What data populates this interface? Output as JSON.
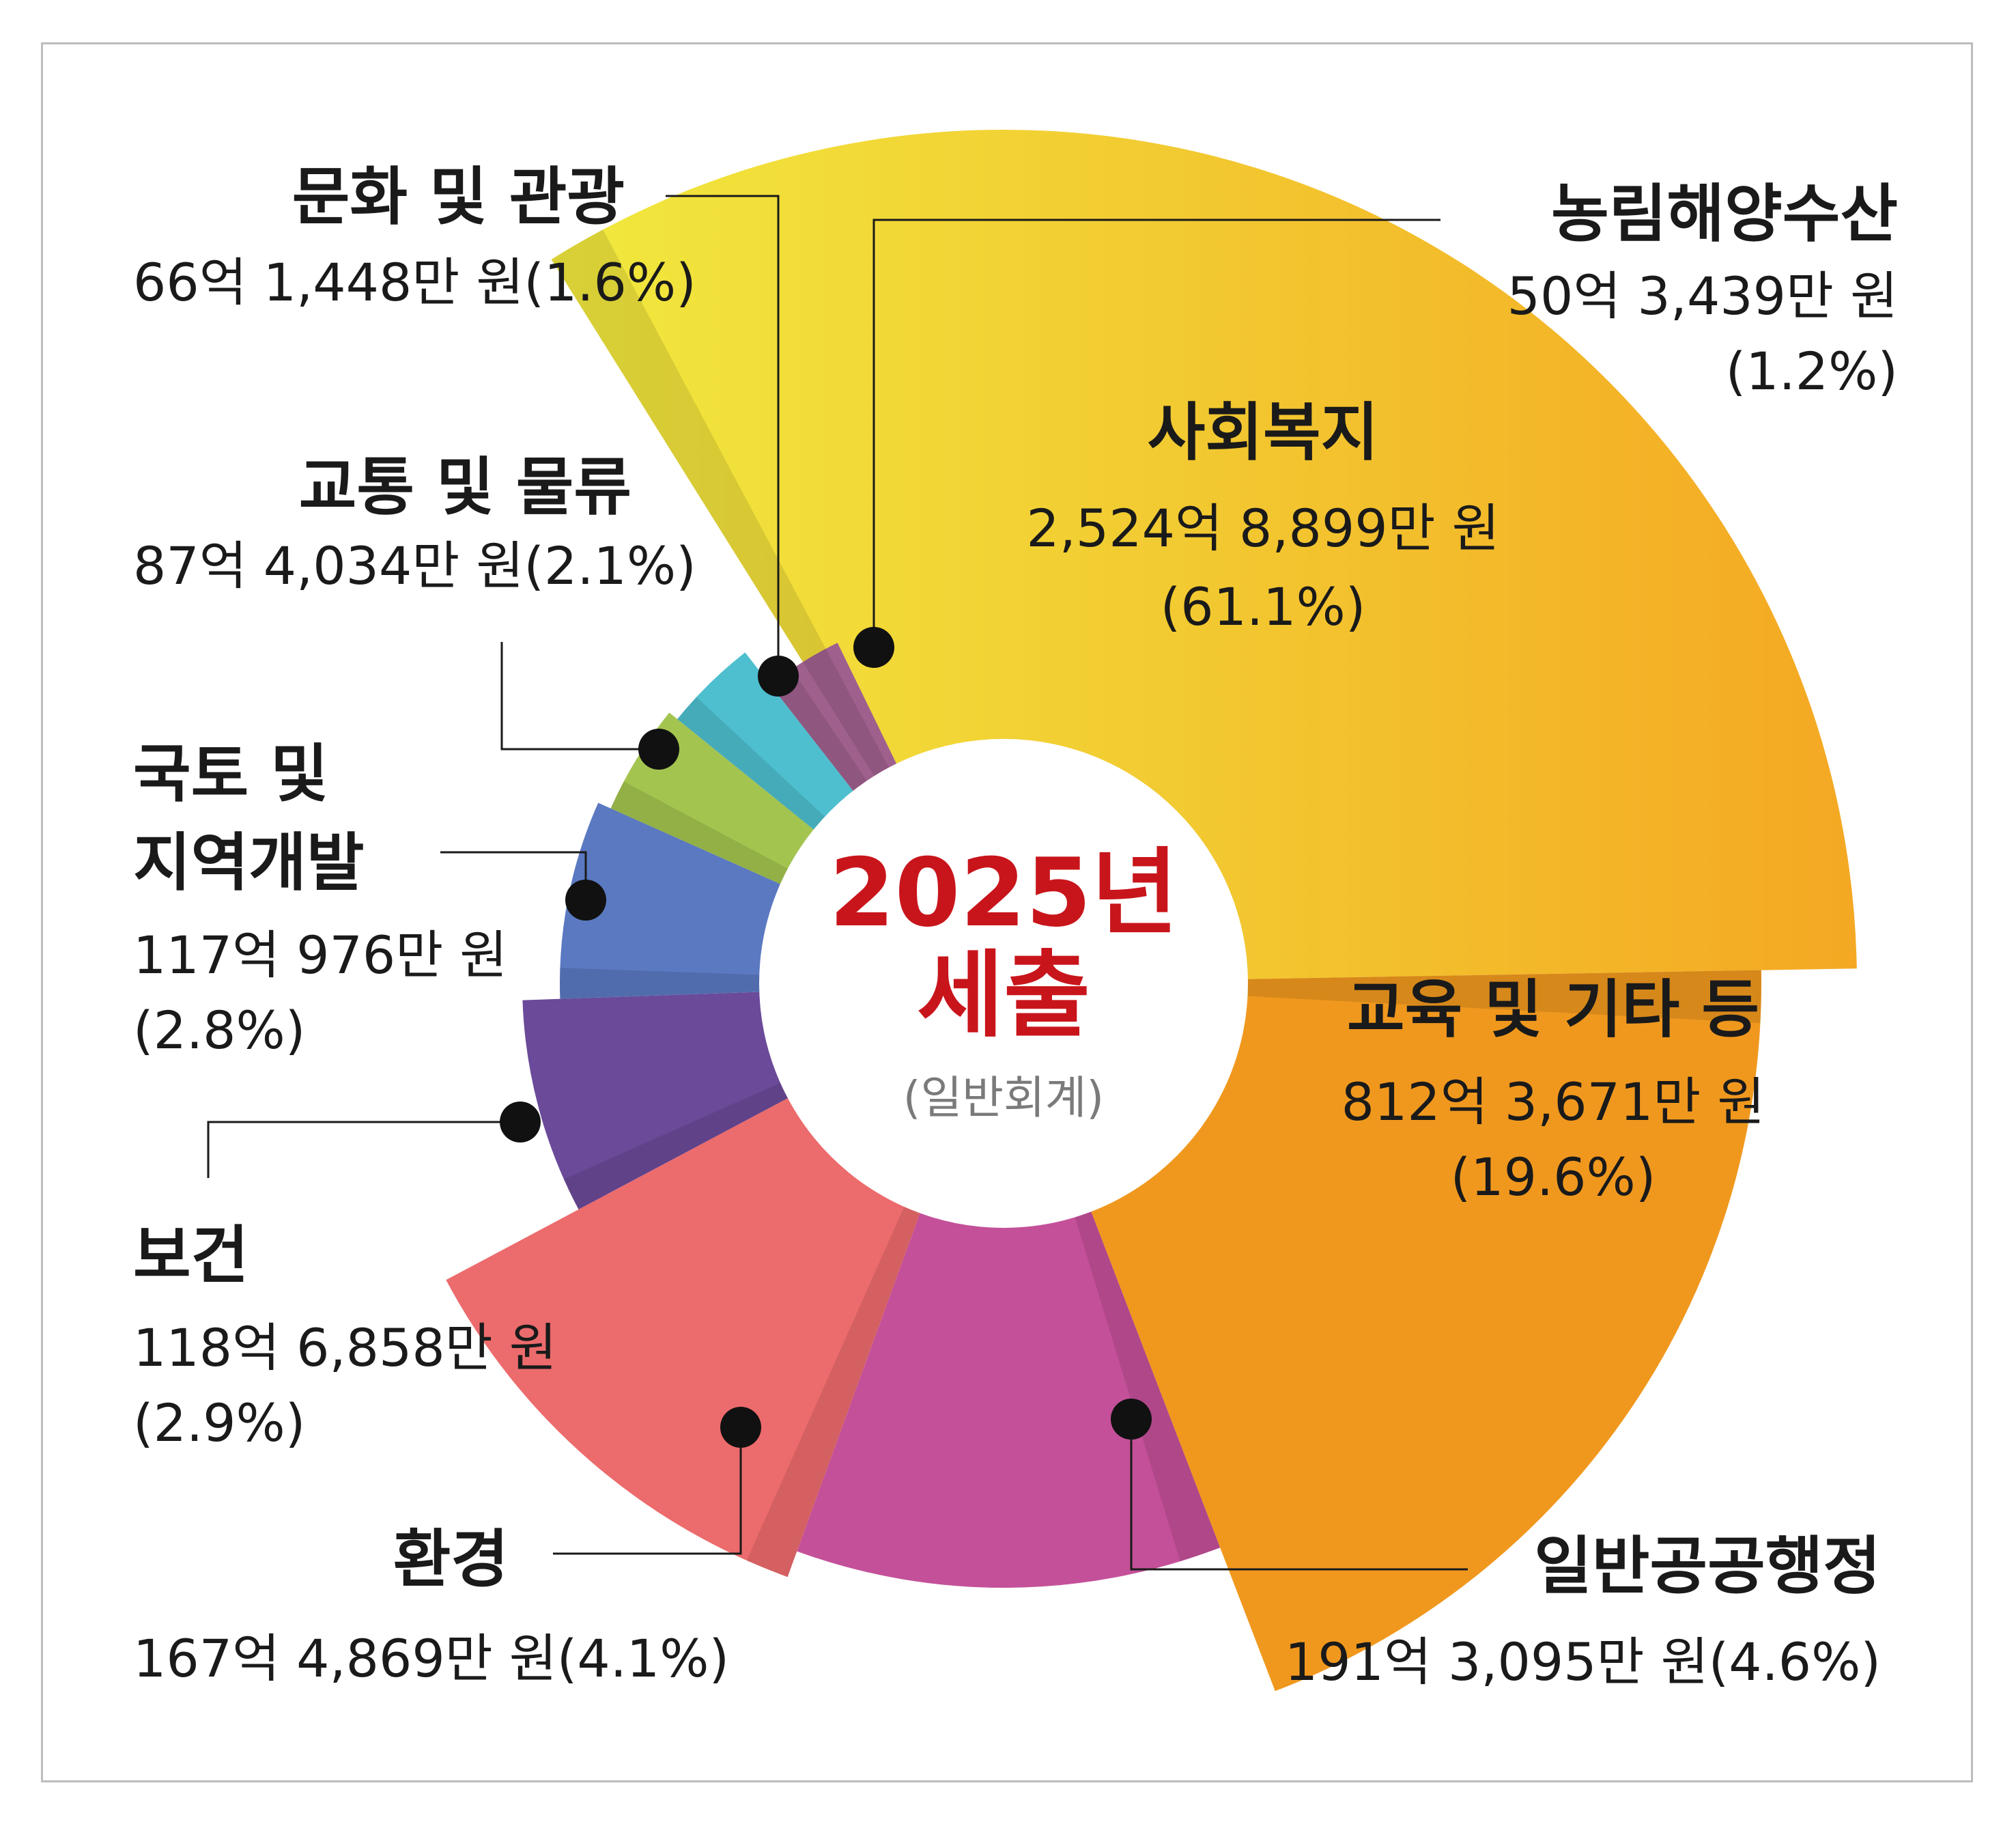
{
  "chart_data": {
    "type": "pie",
    "title": "2025년",
    "subtitle": "세출",
    "note": "(일반회계)",
    "slices": [
      {
        "label": "사회복지",
        "amount": "2,524억 8,899만 원",
        "percent_text": "(61.1%)",
        "value": 61.1,
        "color": "#f5c233"
      },
      {
        "label": "교육 및 기타 등",
        "amount": "812억 3,671만 원",
        "percent_text": "(19.6%)",
        "value": 19.6,
        "color": "#f0981e"
      },
      {
        "label": "일반공공행정",
        "amount": "191억 3,095만 원",
        "percent_text": "(4.6%)",
        "value": 4.6,
        "color": "#c45099"
      },
      {
        "label": "환경",
        "amount": "167억 4,869만 원",
        "percent_text": "(4.1%)",
        "value": 4.1,
        "color": "#ec6b6c"
      },
      {
        "label": "보건",
        "amount": "118억 6,858만 원",
        "percent_text": "(2.9%)",
        "value": 2.9,
        "color": "#6b4a99"
      },
      {
        "label": "국토 및 지역개발",
        "label_lines": [
          "국토 및",
          "지역개발"
        ],
        "amount": "117억 976만 원",
        "percent_text": "(2.8%)",
        "value": 2.8,
        "color": "#5b79c1"
      },
      {
        "label": "교통 및 물류",
        "amount": "87억 4,034만 원",
        "percent_text": "(2.1%)",
        "value": 2.1,
        "color": "#a4c450"
      },
      {
        "label": "문화 및 관광",
        "amount": "66억 1,448만 원",
        "percent_text": "(1.6%)",
        "value": 1.6,
        "color": "#4ebfcf"
      },
      {
        "label": "농림해양수산",
        "amount": "50억 3,439만 원",
        "percent_text": "(1.2%)",
        "value": 1.2,
        "color": "#a0608e"
      }
    ]
  }
}
